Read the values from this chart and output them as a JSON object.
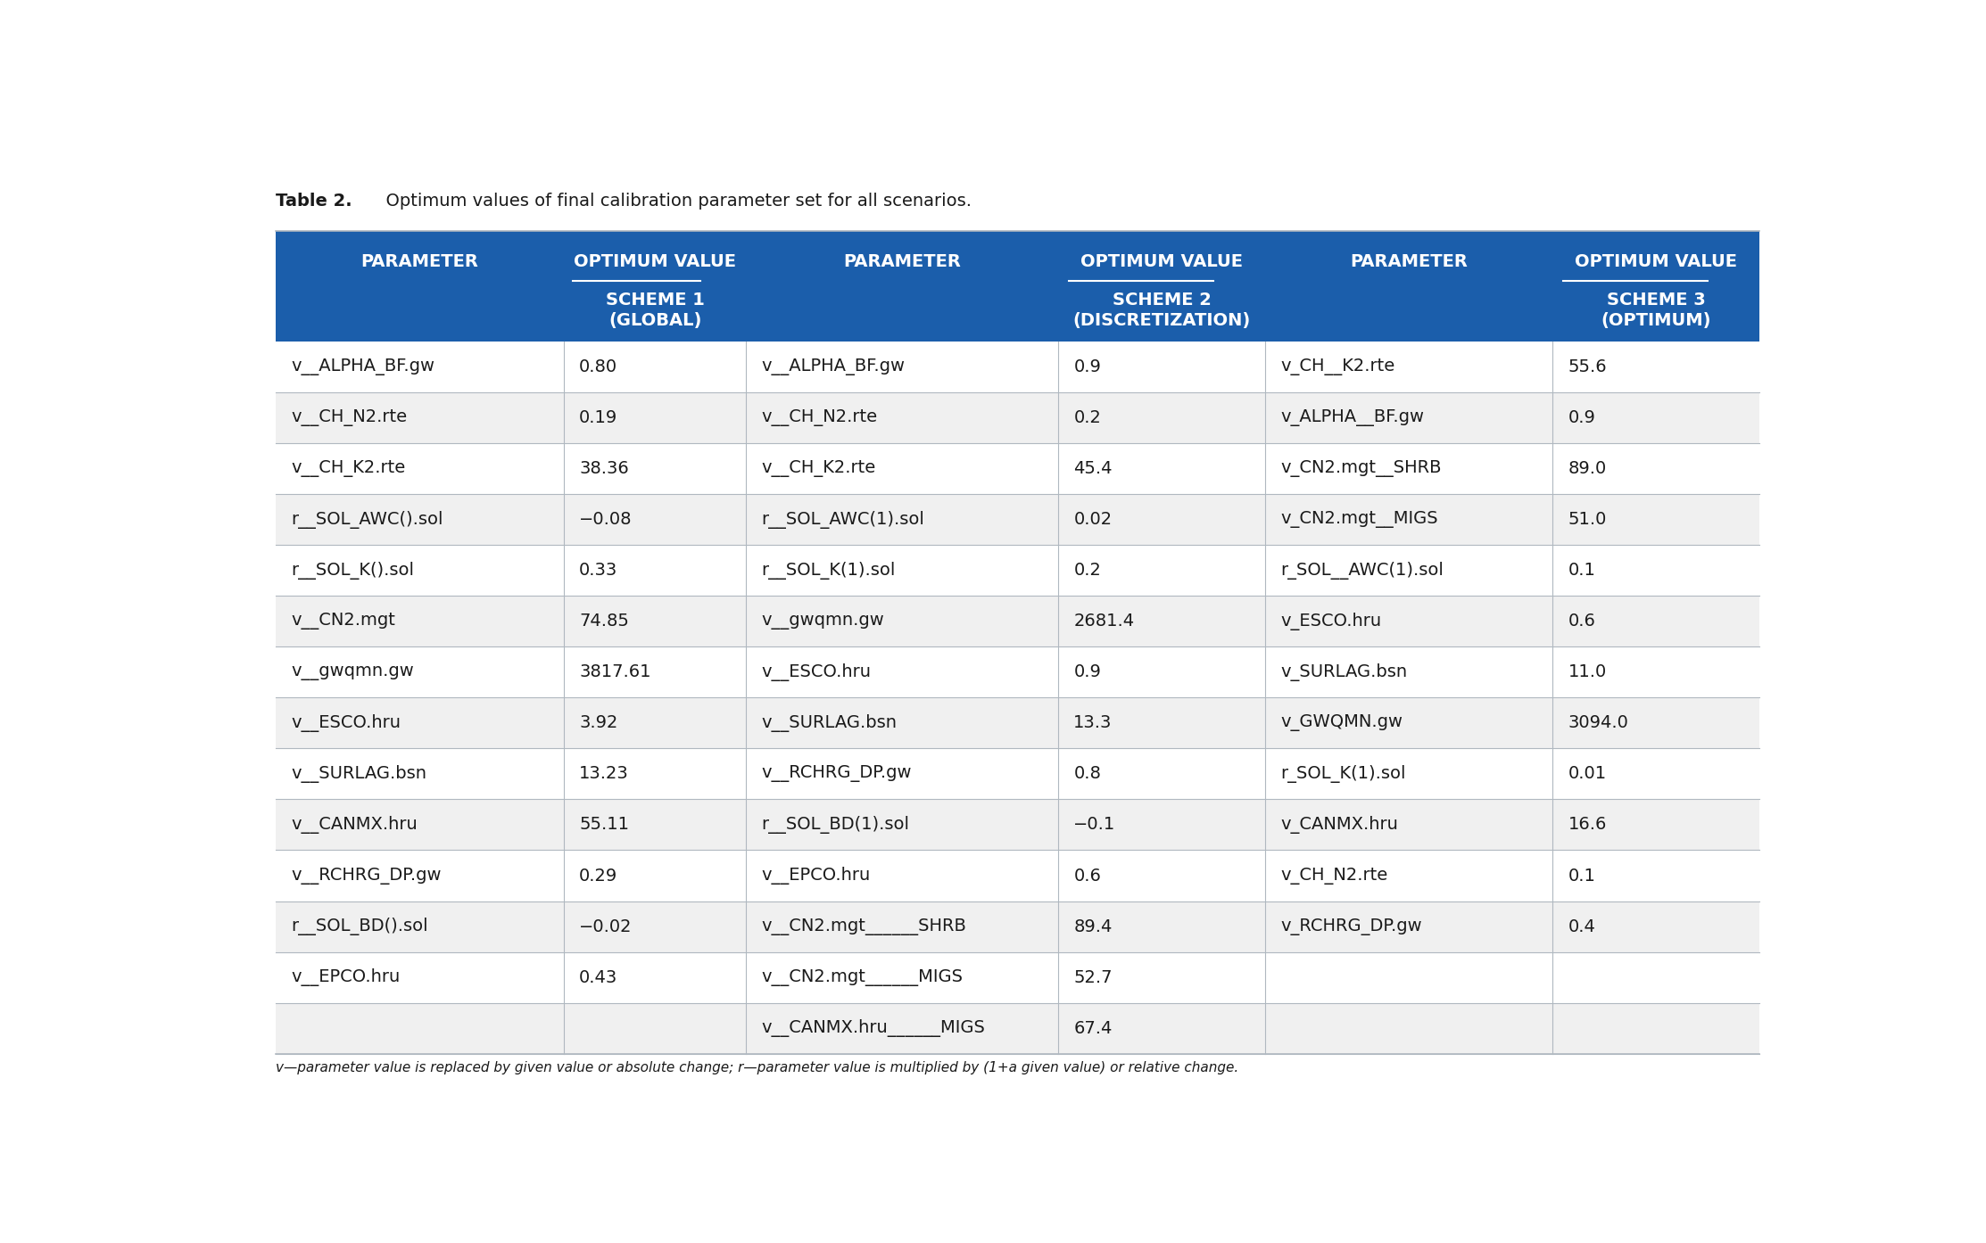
{
  "title_bold": "Table 2.",
  "title_rest": "  Optimum values of final calibration parameter set for all scenarios.",
  "header_bg": "#1b5eab",
  "header_text_color": "#ffffff",
  "row_bg_white": "#ffffff",
  "row_bg_light": "#f0f0f0",
  "grid_color": "#b0b8c0",
  "text_color": "#1a1a1a",
  "footnote": "v—parameter value is replaced by given value or absolute change; r—parameter value is multiplied by (1+a given value) or relative change.",
  "col_headers_row1": [
    "PARAMETER",
    "OPTIMUM VALUE",
    "PARAMETER",
    "OPTIMUM VALUE",
    "PARAMETER",
    "OPTIMUM VALUE"
  ],
  "col_headers_row2_vals": [
    "SCHEME 1\n(GLOBAL)",
    "SCHEME 2\n(DISCRETIZATION)",
    "SCHEME 3\n(OPTIMUM)"
  ],
  "col_headers_row2_cols": [
    1,
    3,
    5
  ],
  "rows": [
    [
      "v__ALPHA_BF.gw",
      "0.80",
      "v__ALPHA_BF.gw",
      "0.9",
      "v_CH__K2.rte",
      "55.6"
    ],
    [
      "v__CH_N2.rte",
      "0.19",
      "v__CH_N2.rte",
      "0.2",
      "v_ALPHA__BF.gw",
      "0.9"
    ],
    [
      "v__CH_K2.rte",
      "38.36",
      "v__CH_K2.rte",
      "45.4",
      "v_CN2.mgt__SHRB",
      "89.0"
    ],
    [
      "r__SOL_AWC().sol",
      "−0.08",
      "r__SOL_AWC(1).sol",
      "0.02",
      "v_CN2.mgt__MIGS",
      "51.0"
    ],
    [
      "r__SOL_K().sol",
      "0.33",
      "r__SOL_K(1).sol",
      "0.2",
      "r_SOL__AWC(1).sol",
      "0.1"
    ],
    [
      "v__CN2.mgt",
      "74.85",
      "v__gwqmn.gw",
      "2681.4",
      "v_ESCO.hru",
      "0.6"
    ],
    [
      "v__gwqmn.gw",
      "3817.61",
      "v__ESCO.hru",
      "0.9",
      "v_SURLAG.bsn",
      "11.0"
    ],
    [
      "v__ESCO.hru",
      "3.92",
      "v__SURLAG.bsn",
      "13.3",
      "v_GWQMN.gw",
      "3094.0"
    ],
    [
      "v__SURLAG.bsn",
      "13.23",
      "v__RCHRG_DP.gw",
      "0.8",
      "r_SOL_K(1).sol",
      "0.01"
    ],
    [
      "v__CANMX.hru",
      "55.11",
      "r__SOL_BD(1).sol",
      "−0.1",
      "v_CANMX.hru",
      "16.6"
    ],
    [
      "v__RCHRG_DP.gw",
      "0.29",
      "v__EPCO.hru",
      "0.6",
      "v_CH_N2.rte",
      "0.1"
    ],
    [
      "r__SOL_BD().sol",
      "−0.02",
      "v__CN2.mgt______SHRB",
      "89.4",
      "v_RCHRG_DP.gw",
      "0.4"
    ],
    [
      "v__EPCO.hru",
      "0.43",
      "v__CN2.mgt______MIGS",
      "52.7",
      "",
      ""
    ],
    [
      "",
      "",
      "v__CANMX.hru______MIGS",
      "67.4",
      "",
      ""
    ]
  ],
  "col_props": [
    0.178,
    0.113,
    0.193,
    0.128,
    0.178,
    0.128
  ],
  "title_fontsize": 14,
  "header_fontsize": 14,
  "cell_fontsize": 14,
  "footnote_fontsize": 11
}
